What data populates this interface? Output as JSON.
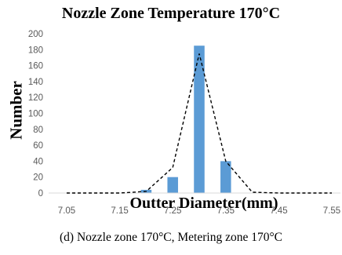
{
  "chart_data": {
    "type": "bar",
    "title": "Nozzle Zone Temperature 170°C",
    "xlabel": "Outter Diameter(mm)",
    "ylabel": "Number",
    "x_tick_labels": [
      "7.05",
      "7.15",
      "7.25",
      "7.35",
      "7.45",
      "7.55"
    ],
    "y_tick_labels": [
      "0",
      "20",
      "40",
      "60",
      "80",
      "100",
      "120",
      "140",
      "160",
      "180",
      "200"
    ],
    "ylim": [
      0,
      200
    ],
    "xlim": [
      7.05,
      7.55
    ],
    "grid": false,
    "bars": {
      "x": [
        7.2,
        7.25,
        7.3,
        7.35
      ],
      "values": [
        4,
        20,
        185,
        40
      ],
      "color": "#5b9bd5"
    },
    "fit_line": {
      "style": "dashed",
      "color": "#000000",
      "x": [
        7.05,
        7.15,
        7.2,
        7.25,
        7.3,
        7.35,
        7.4,
        7.45,
        7.55
      ],
      "values": [
        0,
        0,
        2,
        32,
        175,
        40,
        1,
        0,
        0
      ]
    }
  },
  "caption": "(d) Nozzle zone 170°C, Metering zone 170°C"
}
